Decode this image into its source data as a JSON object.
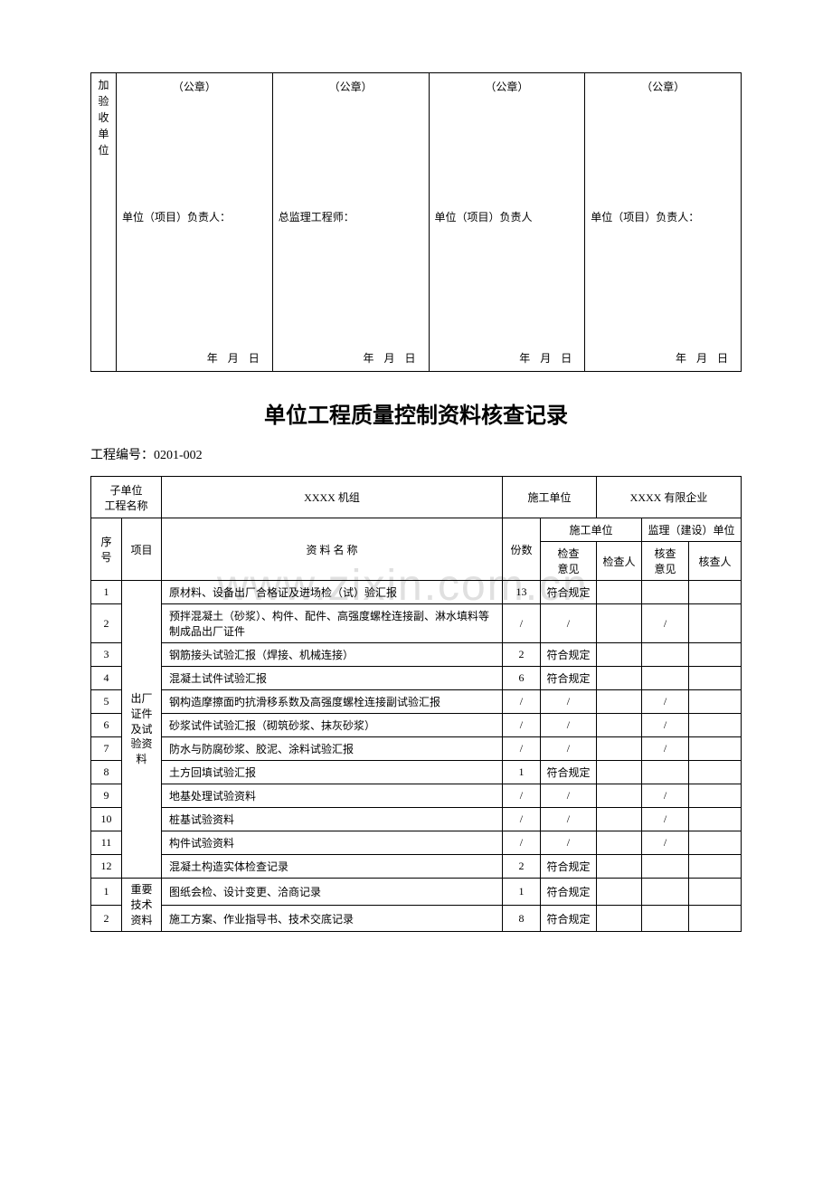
{
  "top_box": {
    "side_label_chars": [
      "加",
      "验",
      "收",
      "单",
      "位"
    ],
    "cols": [
      {
        "seal": "（公章）",
        "resp": "单位（项目）负责人：",
        "date": "年  月  日"
      },
      {
        "seal": "（公章）",
        "resp": "总监理工程师：",
        "date": "年  月  日"
      },
      {
        "seal": "（公章）",
        "resp": "单位（项目）负责人",
        "date": "年  月  日"
      },
      {
        "seal": "（公章）",
        "resp": "单位（项目）负责人：",
        "date": "年  月  日"
      }
    ]
  },
  "watermark": "www.zixin.com.cn",
  "title": "单位工程质量控制资料核查记录",
  "project_number_label": "工程编号：",
  "project_number": "0201-002",
  "info_row": {
    "sub_unit_label": "子单位\n工程名称",
    "sub_unit_value": "XXXX 机组",
    "construction_label": "施工单位",
    "construction_value": "XXXX 有限企业"
  },
  "header": {
    "seq": "序号",
    "proj": "项目",
    "material": "资  料  名  称",
    "qty": "份数",
    "construction_unit": "施工单位",
    "supervision_unit": "监理（建设）单位",
    "check_opinion": "检查\n意见",
    "checker": "检查人",
    "review_opinion": "核查\n意见",
    "reviewer": "核查人"
  },
  "groups": [
    {
      "proj_label": "出厂证件及试验资料",
      "rows": [
        {
          "seq": "1",
          "name": "原材料、设备出厂合格证及进场检（试）验汇报",
          "qty": "13",
          "op1": "符合规定",
          "op2": ""
        },
        {
          "seq": "2",
          "name": "预拌混凝土（砂浆）、构件、配件、高强度螺栓连接副、淋水填料等制成品出厂证件",
          "qty": "/",
          "op1": "/",
          "op2": "/"
        },
        {
          "seq": "3",
          "name": "钢筋接头试验汇报（焊接、机械连接）",
          "qty": "2",
          "op1": "符合规定",
          "op2": ""
        },
        {
          "seq": "4",
          "name": "混凝土试件试验汇报",
          "qty": "6",
          "op1": "符合规定",
          "op2": ""
        },
        {
          "seq": "5",
          "name": "钢构造摩擦面旳抗滑移系数及高强度螺栓连接副试验汇报",
          "qty": "/",
          "op1": "/",
          "op2": "/"
        },
        {
          "seq": "6",
          "name": "砂浆试件试验汇报（砌筑砂浆、抹灰砂浆）",
          "qty": "/",
          "op1": "/",
          "op2": "/"
        },
        {
          "seq": "7",
          "name": "防水与防腐砂浆、胶泥、涂料试验汇报",
          "qty": "/",
          "op1": "/",
          "op2": "/"
        },
        {
          "seq": "8",
          "name": "土方回填试验汇报",
          "qty": "1",
          "op1": "符合规定",
          "op2": ""
        },
        {
          "seq": "9",
          "name": "地基处理试验资料",
          "qty": "/",
          "op1": "/",
          "op2": "/"
        },
        {
          "seq": "10",
          "name": "桩基试验资料",
          "qty": "/",
          "op1": "/",
          "op2": "/"
        },
        {
          "seq": "11",
          "name": "构件试验资料",
          "qty": "/",
          "op1": "/",
          "op2": "/"
        },
        {
          "seq": "12",
          "name": "混凝土构造实体检查记录",
          "qty": "2",
          "op1": "符合规定",
          "op2": ""
        }
      ]
    },
    {
      "proj_label": "重要技术资料",
      "rows": [
        {
          "seq": "1",
          "name": "图纸会检、设计变更、洽商记录",
          "qty": "1",
          "op1": "符合规定",
          "op2": ""
        },
        {
          "seq": "2",
          "name": "施工方案、作业指导书、技术交底记录",
          "qty": "8",
          "op1": "符合规定",
          "op2": ""
        }
      ]
    }
  ]
}
